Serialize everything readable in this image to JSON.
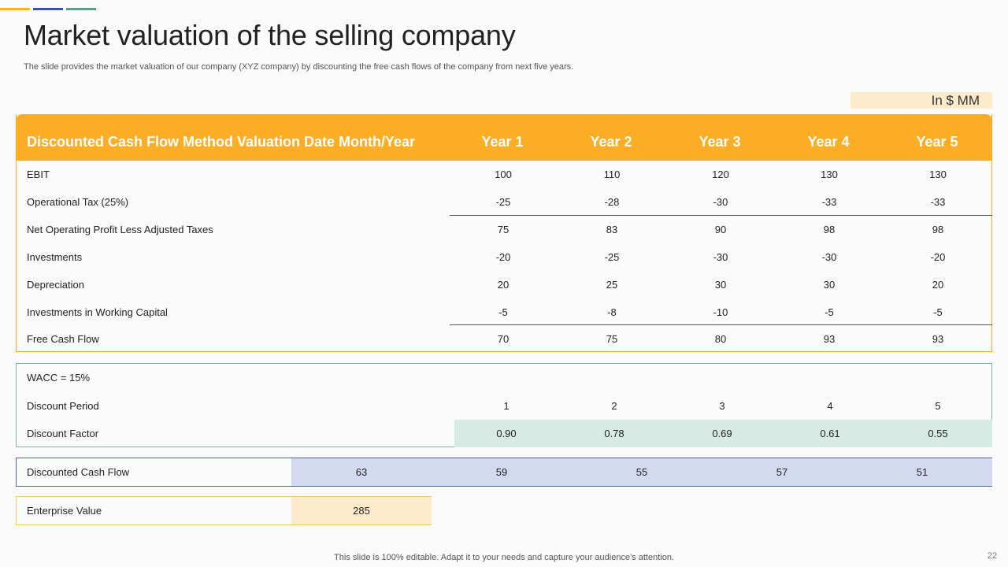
{
  "header": {
    "title": "Market valuation of the selling company",
    "subtitle": "The slide provides the market valuation of our company (XYZ  company) by discounting the free cash flows of the company from next five years.",
    "unit": "In $ MM",
    "accent_colors": [
      "#f5b523",
      "#3c5598",
      "#5a9e8d"
    ]
  },
  "dcf_table": {
    "header_label": "Discounted Cash Flow Method Valuation Date Month/Year",
    "years": [
      "Year 1",
      "Year 2",
      "Year 3",
      "Year 4",
      "Year 5"
    ],
    "rows": [
      {
        "label": "EBIT",
        "values": [
          "100",
          "110",
          "120",
          "130",
          "130"
        ]
      },
      {
        "label": "Operational Tax (25%)",
        "values": [
          "-25",
          "-28",
          "-30",
          "-33",
          "-33"
        ]
      },
      {
        "label": "Net Operating Profit Less Adjusted Taxes",
        "values": [
          "75",
          "83",
          "90",
          "98",
          "98"
        ]
      },
      {
        "label": "Investments",
        "values": [
          "-20",
          "-25",
          "-30",
          "-30",
          "-20"
        ]
      },
      {
        "label": "Depreciation",
        "values": [
          "20",
          "25",
          "30",
          "30",
          "20"
        ]
      },
      {
        "label": "Investments  in Working Capital",
        "values": [
          "-5",
          "-8",
          "-10",
          "-5",
          "-5"
        ]
      },
      {
        "label": "Free Cash Flow",
        "values": [
          "70",
          "75",
          "80",
          "93",
          "93"
        ]
      }
    ]
  },
  "wacc_block": {
    "wacc_label": "WACC = 15%",
    "period_label": "Discount Period",
    "periods": [
      "1",
      "2",
      "3",
      "4",
      "5"
    ],
    "factor_label": "Discount Factor",
    "factors": [
      "0.90",
      "0.78",
      "0.69",
      "0.61",
      "0.55"
    ]
  },
  "discounted_cash_flow": {
    "label": "Discounted Cash Flow",
    "values": [
      "63",
      "59",
      "55",
      "57",
      "51"
    ]
  },
  "enterprise_value": {
    "label": "Enterprise Value",
    "value": "285"
  },
  "footer": {
    "note": "This slide is 100% editable. Adapt it to your needs and capture your audience's attention.",
    "page_number": "22"
  }
}
